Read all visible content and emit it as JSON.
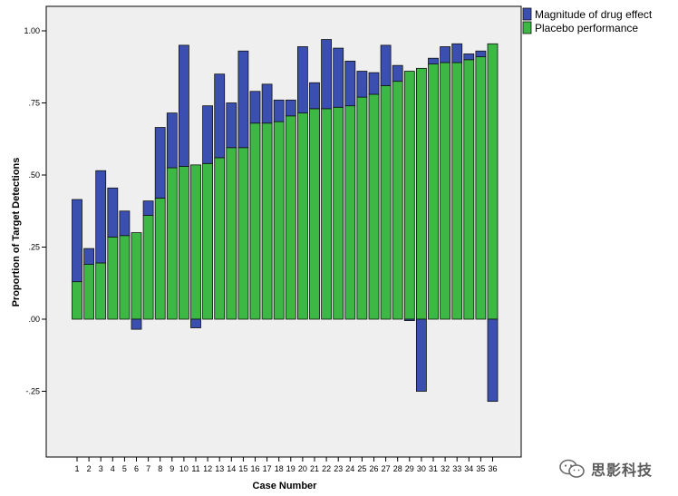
{
  "chart_data": {
    "type": "bar",
    "stacked": true,
    "xlabel": "Case Number",
    "ylabel": "Proportion of Target Detections",
    "ylim": [
      -0.5,
      1.1
    ],
    "y_ticks": [
      1.0,
      0.75,
      0.5,
      0.25,
      0.0,
      -0.25
    ],
    "y_tick_labels": [
      "1.00",
      ".75",
      ".50",
      ".25",
      ".00",
      "-.25"
    ],
    "grid": false,
    "legend_position": "top-right outside",
    "categories": [
      "1",
      "2",
      "3",
      "4",
      "5",
      "6",
      "7",
      "8",
      "9",
      "10",
      "11",
      "12",
      "13",
      "14",
      "15",
      "16",
      "17",
      "18",
      "19",
      "20",
      "21",
      "22",
      "23",
      "24",
      "25",
      "26",
      "27",
      "28",
      "29",
      "30",
      "31",
      "32",
      "33",
      "34",
      "35",
      "36"
    ],
    "series": [
      {
        "name": "Placebo performance",
        "color": "#3db845",
        "values": [
          0.13,
          0.19,
          0.195,
          0.285,
          0.29,
          0.3,
          0.36,
          0.42,
          0.525,
          0.53,
          0.535,
          0.54,
          0.56,
          0.595,
          0.595,
          0.68,
          0.68,
          0.685,
          0.705,
          0.715,
          0.73,
          0.73,
          0.735,
          0.74,
          0.77,
          0.78,
          0.81,
          0.825,
          0.86,
          0.87,
          0.885,
          0.89,
          0.89,
          0.9,
          0.91,
          0.955
        ]
      },
      {
        "name": "Magnitude of drug effect",
        "color": "#3a4fb0",
        "values": [
          0.285,
          0.055,
          0.32,
          0.17,
          0.085,
          -0.035,
          0.05,
          0.245,
          0.19,
          0.42,
          -0.03,
          0.2,
          0.29,
          0.155,
          0.335,
          0.11,
          0.135,
          0.075,
          0.055,
          0.23,
          0.09,
          0.24,
          0.205,
          0.155,
          0.09,
          0.075,
          0.14,
          0.055,
          -0.005,
          -0.25,
          0.02,
          0.055,
          0.065,
          0.02,
          0.02,
          -0.285
        ]
      }
    ]
  },
  "watermark": {
    "icon": "wechat-logo-icon",
    "text": "思影科技"
  }
}
